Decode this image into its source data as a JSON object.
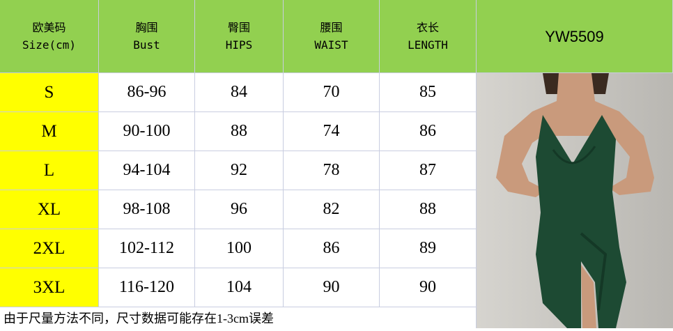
{
  "header": {
    "size": {
      "cn": "欧美码",
      "en": "Size(cm)"
    },
    "bust": {
      "cn": "胸围",
      "en": "Bust"
    },
    "hips": {
      "cn": "臀围",
      "en": "HIPS"
    },
    "waist": {
      "cn": "腰围",
      "en": "WAIST"
    },
    "length": {
      "cn": "衣长",
      "en": "LENGTH"
    },
    "product_code": "YW5509"
  },
  "rows": [
    {
      "size": "S",
      "bust": "86-96",
      "hips": "84",
      "waist": "70",
      "length": "85"
    },
    {
      "size": "M",
      "bust": "90-100",
      "hips": "88",
      "waist": "74",
      "length": "86"
    },
    {
      "size": "L",
      "bust": "94-104",
      "hips": "92",
      "waist": "78",
      "length": "87"
    },
    {
      "size": "XL",
      "bust": "98-108",
      "hips": "96",
      "waist": "82",
      "length": "88"
    },
    {
      "size": "2XL",
      "bust": "102-112",
      "hips": "100",
      "waist": "86",
      "length": "89"
    },
    {
      "size": "3XL",
      "bust": "116-120",
      "hips": "104",
      "waist": "90",
      "length": "90"
    }
  ],
  "note": "由于尺量方法不同，尺寸数据可能存在1-3cm误差",
  "colors": {
    "header": "#92d050",
    "size_column": "#ffff00",
    "dress": "#1d4a33"
  }
}
